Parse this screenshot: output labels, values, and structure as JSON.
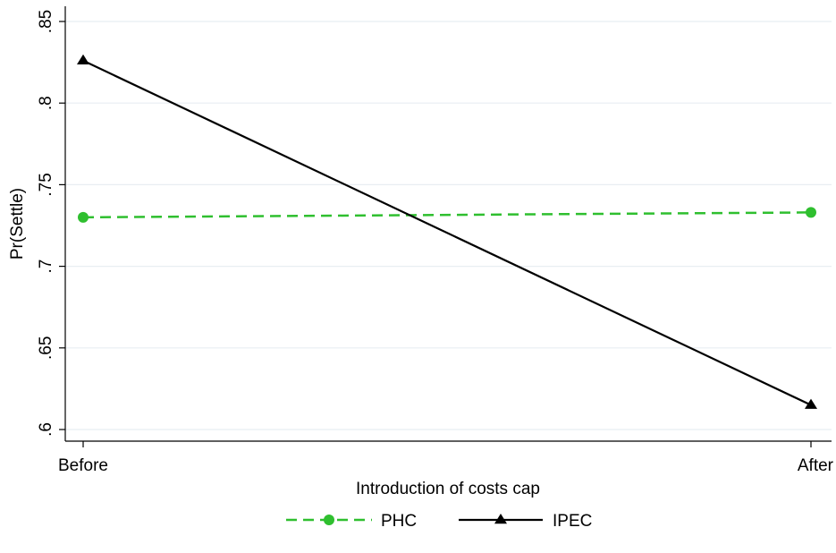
{
  "chart_data": {
    "type": "line",
    "title": "",
    "xlabel": "Introduction of costs cap",
    "ylabel": "Pr(Settle)",
    "categories": [
      "Before",
      "After"
    ],
    "ylim": [
      0.6,
      0.85
    ],
    "yticks": [
      0.6,
      0.65,
      0.7,
      0.75,
      0.8,
      0.85
    ],
    "ytick_labels": [
      ".6",
      ".65",
      ".7",
      ".75",
      ".8",
      ".85"
    ],
    "grid": true,
    "legend_position": "bottom",
    "series": [
      {
        "name": "PHC",
        "values": [
          0.73,
          0.733
        ],
        "color": "#2fbf2f",
        "line_style": "dashed",
        "marker": "circle"
      },
      {
        "name": "IPEC",
        "values": [
          0.826,
          0.615
        ],
        "color": "#000000",
        "line_style": "solid",
        "marker": "triangle"
      }
    ]
  }
}
